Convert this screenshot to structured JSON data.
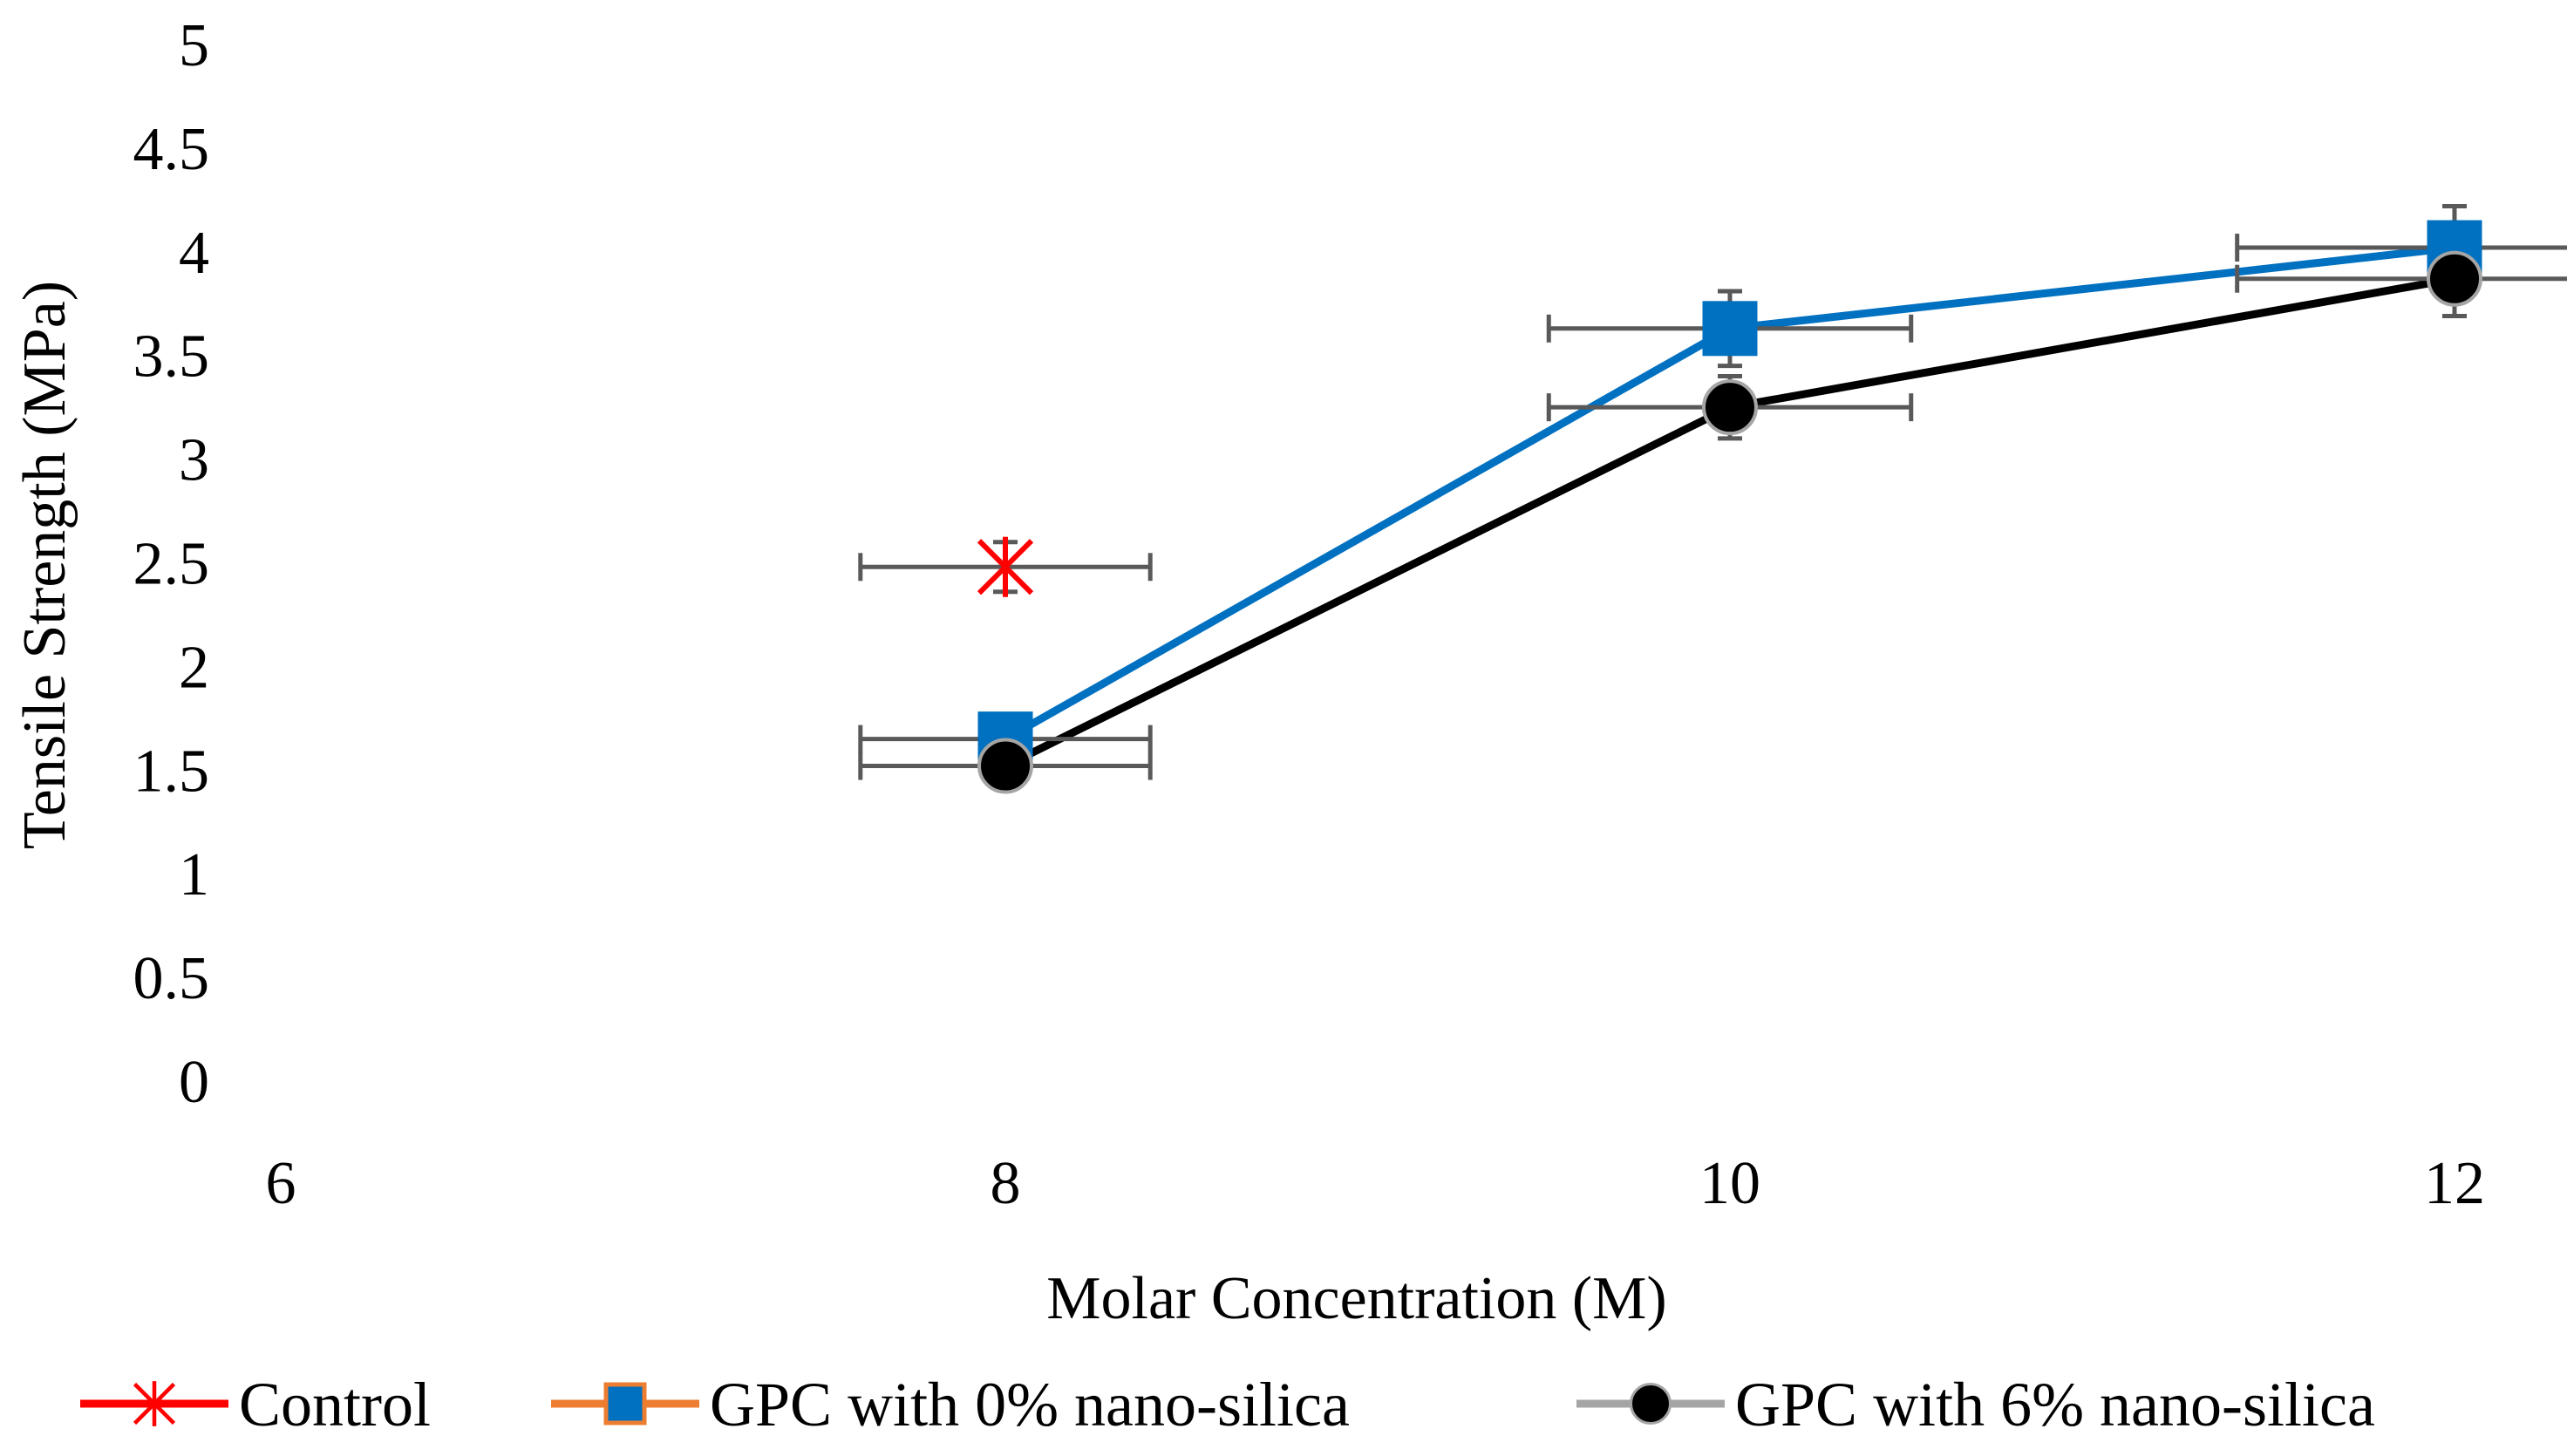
{
  "chart_data": {
    "type": "scatter",
    "title": "",
    "xlabel": "Molar Concentration (M)",
    "ylabel": "Tensile Strength (MPa)",
    "xlim": [
      6,
      12
    ],
    "ylim": [
      0,
      5
    ],
    "x_ticks": [
      6,
      8,
      10,
      12
    ],
    "y_ticks": [
      0,
      0.5,
      1,
      1.5,
      2,
      2.5,
      3,
      3.5,
      4,
      4.5,
      5
    ],
    "grid": false,
    "legend_position": "bottom",
    "series": [
      {
        "name": "Control",
        "marker": "asterisk",
        "line_color": "#FF0000",
        "marker_color": "#FF0000",
        "connected": false,
        "x": [
          8
        ],
        "y": [
          2.48
        ],
        "x_err": [
          0.4
        ],
        "y_err": [
          0.12
        ]
      },
      {
        "name": "GPC with 0% nano-silica",
        "marker": "square",
        "line_color": "#0070C0",
        "legend_line_color": "#ED7D31",
        "marker_color": "#0070C0",
        "connected": true,
        "x": [
          8,
          10,
          12
        ],
        "y": [
          1.65,
          3.63,
          4.02
        ],
        "x_err": [
          0.4,
          0.5,
          0.6
        ],
        "y_err": [
          0.08,
          0.18,
          0.2
        ]
      },
      {
        "name": "GPC with 6% nano-silica",
        "marker": "circle",
        "line_color": "#000000",
        "legend_line_color": "#A5A5A5",
        "marker_color": "#000000",
        "connected": true,
        "x": [
          8,
          10,
          12
        ],
        "y": [
          1.52,
          3.25,
          3.87
        ],
        "x_err": [
          0.4,
          0.5,
          0.6
        ],
        "y_err": [
          0.08,
          0.15,
          0.18
        ]
      }
    ]
  }
}
